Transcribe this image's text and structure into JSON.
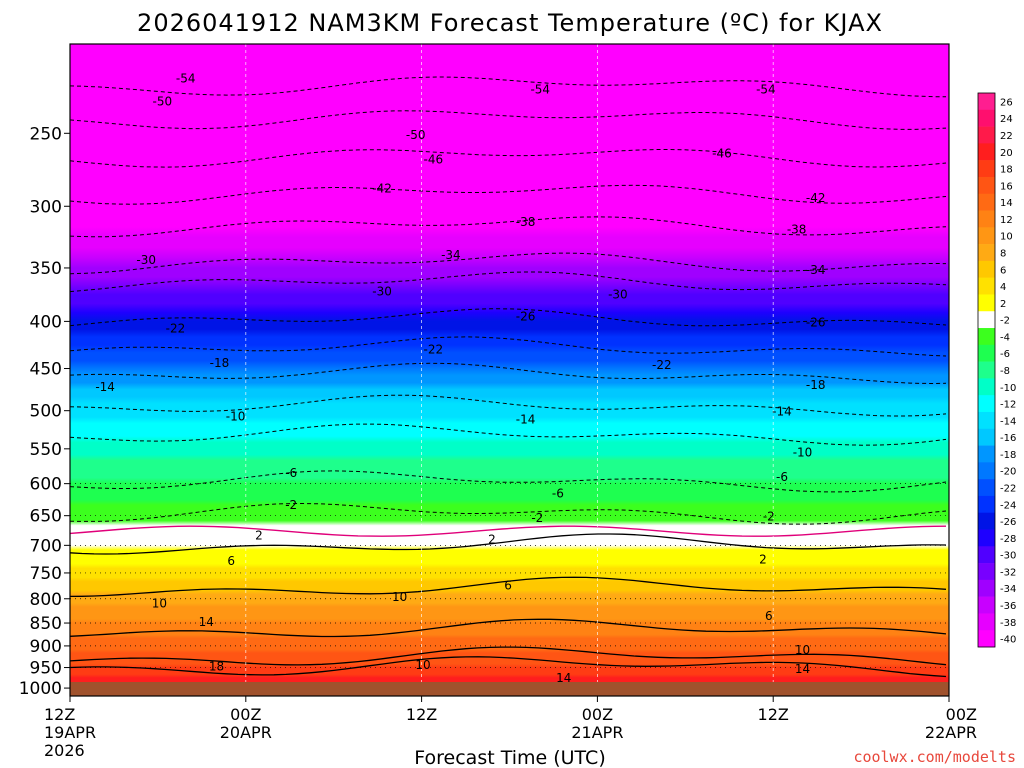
{
  "chart_data": {
    "type": "heatmap",
    "title": "2026041912 NAM3KM Forecast Temperature (ºC) for KJAX",
    "xlabel": "Forecast Time (UTC)",
    "ylabel": "",
    "x_ticks": [
      {
        "hour": 0,
        "lines": [
          "12Z",
          "19APR",
          "2026"
        ]
      },
      {
        "hour": 12,
        "lines": [
          "00Z",
          "20APR"
        ]
      },
      {
        "hour": 24,
        "lines": [
          "12Z"
        ]
      },
      {
        "hour": 36,
        "lines": [
          "00Z",
          "21APR"
        ]
      },
      {
        "hour": 48,
        "lines": [
          "12Z"
        ]
      },
      {
        "hour": 60,
        "lines": [
          "00Z",
          "22APR"
        ]
      }
    ],
    "xlim": [
      0,
      60
    ],
    "y_ticks": [
      250,
      300,
      350,
      400,
      450,
      500,
      550,
      600,
      650,
      700,
      750,
      800,
      850,
      900,
      950,
      1000
    ],
    "ylim": [
      200,
      1020
    ],
    "y_scale": "log",
    "colorbar": {
      "levels": [
        26,
        24,
        22,
        20,
        18,
        16,
        14,
        12,
        10,
        8,
        6,
        4,
        2,
        -2,
        -4,
        -6,
        -8,
        -10,
        -12,
        -14,
        -16,
        -18,
        -20,
        -22,
        -24,
        -26,
        -28,
        -30,
        -32,
        -34,
        -36,
        -38,
        -40
      ],
      "colors": [
        "#ff1e90",
        "#ff0f6e",
        "#ff1a4a",
        "#ff1e1e",
        "#ff3c14",
        "#ff5514",
        "#ff6a14",
        "#ff8214",
        "#ff9614",
        "#ffaa14",
        "#ffc800",
        "#ffe100",
        "#ffff00",
        "#ffffff",
        "#3cff1e",
        "#1eff50",
        "#1eff8c",
        "#00ffc8",
        "#00ffff",
        "#00e1ff",
        "#00c8ff",
        "#0096ff",
        "#0078ff",
        "#0050ff",
        "#0032ff",
        "#0014e6",
        "#1e00ff",
        "#5000ff",
        "#7800ff",
        "#a000ff",
        "#c800ff",
        "#e600ff",
        "#ff00ff"
      ]
    },
    "contour_labels": [
      {
        "text": "-54",
        "x": 7.9,
        "p": 218
      },
      {
        "text": "-54",
        "x": 32.1,
        "p": 224
      },
      {
        "text": "-54",
        "x": 47.5,
        "p": 224
      },
      {
        "text": "-50",
        "x": 6.3,
        "p": 231
      },
      {
        "text": "-50",
        "x": 23.6,
        "p": 251
      },
      {
        "text": "-46",
        "x": 24.8,
        "p": 267
      },
      {
        "text": "-46",
        "x": 44.5,
        "p": 263
      },
      {
        "text": "-42",
        "x": 21.3,
        "p": 287
      },
      {
        "text": "-42",
        "x": 50.9,
        "p": 294
      },
      {
        "text": "-38",
        "x": 31.1,
        "p": 312
      },
      {
        "text": "-38",
        "x": 49.6,
        "p": 318
      },
      {
        "text": "-34",
        "x": 26.0,
        "p": 339
      },
      {
        "text": "-34",
        "x": 50.9,
        "p": 352
      },
      {
        "text": "-30",
        "x": 5.2,
        "p": 343
      },
      {
        "text": "-30",
        "x": 21.3,
        "p": 371
      },
      {
        "text": "-30",
        "x": 37.4,
        "p": 374
      },
      {
        "text": "-26",
        "x": 31.1,
        "p": 395
      },
      {
        "text": "-26",
        "x": 50.9,
        "p": 401
      },
      {
        "text": "-22",
        "x": 7.2,
        "p": 407
      },
      {
        "text": "-22",
        "x": 24.8,
        "p": 429
      },
      {
        "text": "-22",
        "x": 40.4,
        "p": 446
      },
      {
        "text": "-18",
        "x": 10.2,
        "p": 444
      },
      {
        "text": "-18",
        "x": 50.9,
        "p": 469
      },
      {
        "text": "-14",
        "x": 2.4,
        "p": 471
      },
      {
        "text": "-14",
        "x": 31.1,
        "p": 511
      },
      {
        "text": "-14",
        "x": 48.6,
        "p": 501
      },
      {
        "text": "-10",
        "x": 11.3,
        "p": 507
      },
      {
        "text": "-10",
        "x": 50.0,
        "p": 555
      },
      {
        "text": "-6",
        "x": 15.1,
        "p": 584
      },
      {
        "text": "-6",
        "x": 48.6,
        "p": 590
      },
      {
        "text": "-6",
        "x": 33.3,
        "p": 615
      },
      {
        "text": "-2",
        "x": 15.1,
        "p": 633
      },
      {
        "text": "-2",
        "x": 31.9,
        "p": 654
      },
      {
        "text": "-2",
        "x": 47.7,
        "p": 651
      },
      {
        "text": "2",
        "x": 12.9,
        "p": 683
      },
      {
        "text": "2",
        "x": 28.8,
        "p": 690
      },
      {
        "text": "2",
        "x": 47.3,
        "p": 725
      },
      {
        "text": "6",
        "x": 11.0,
        "p": 728
      },
      {
        "text": "6",
        "x": 29.9,
        "p": 774
      },
      {
        "text": "6",
        "x": 47.7,
        "p": 835
      },
      {
        "text": "10",
        "x": 6.1,
        "p": 809
      },
      {
        "text": "10",
        "x": 22.5,
        "p": 796
      },
      {
        "text": "10",
        "x": 24.1,
        "p": 944
      },
      {
        "text": "10",
        "x": 50.0,
        "p": 909
      },
      {
        "text": "14",
        "x": 9.3,
        "p": 848
      },
      {
        "text": "14",
        "x": 33.7,
        "p": 975
      },
      {
        "text": "14",
        "x": 50.0,
        "p": 954
      },
      {
        "text": "18",
        "x": 10.0,
        "p": 947
      }
    ],
    "credit": "coolwx.com/modelts",
    "grid": true,
    "legend": "right colorbar"
  }
}
